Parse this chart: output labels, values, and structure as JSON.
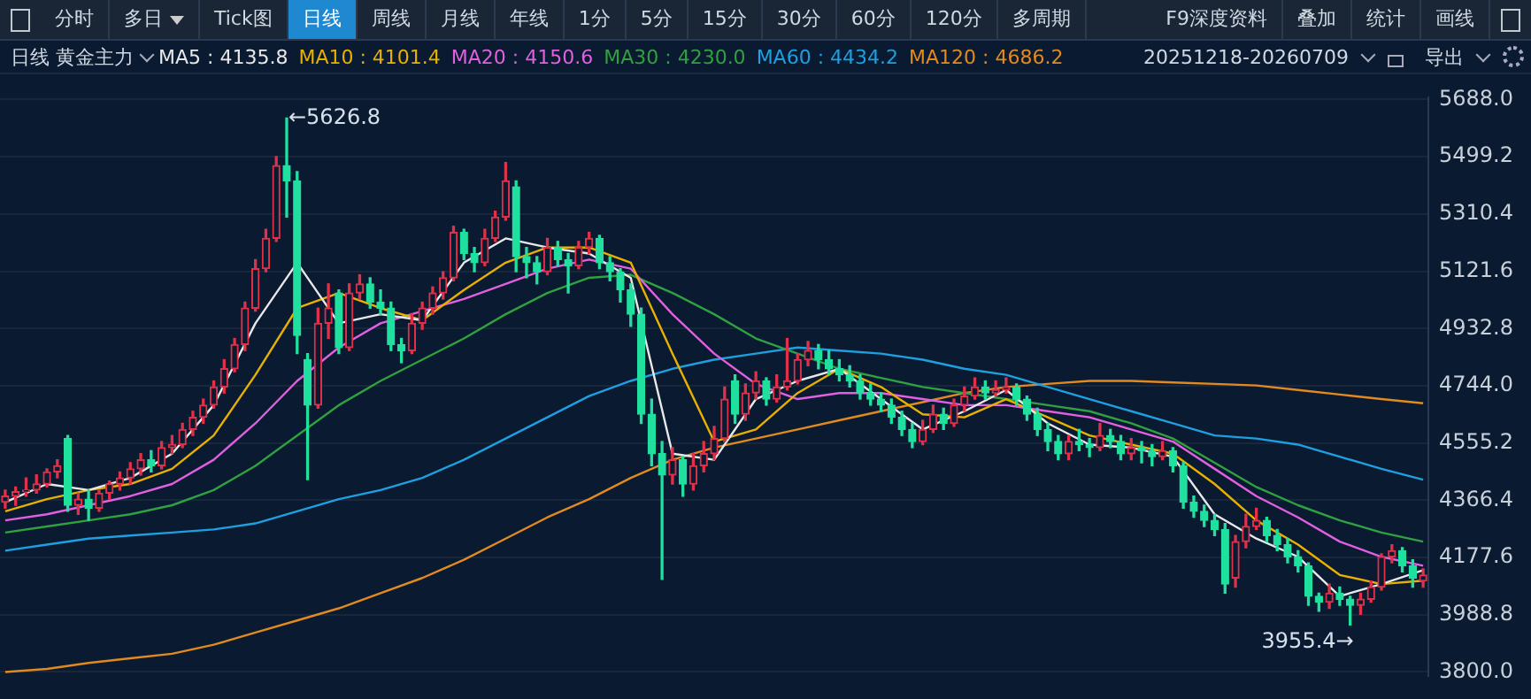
{
  "chart_data": {
    "type": "candlestick",
    "title": "日线 黄金主力",
    "subtitle": "20251218-20260709",
    "annotations": [
      "分时",
      "多日",
      "Tick图",
      "日线",
      "周线",
      "月线",
      "年线",
      "1分",
      "5分",
      "15分",
      "30分",
      "60分",
      "120分",
      "多周期",
      "F9深度资料",
      "叠加",
      "统计",
      "画线",
      "导出",
      "←5626.8",
      "3955.4→"
    ],
    "categories": [
      null,
      null,
      null,
      null,
      null,
      null,
      null,
      null,
      null,
      null,
      null,
      null,
      null,
      null,
      null,
      null,
      null,
      null,
      null,
      null,
      null,
      null,
      null,
      null,
      null,
      null,
      null,
      null,
      null,
      null,
      null,
      null,
      null,
      null,
      null,
      null,
      null,
      null,
      null,
      null,
      null,
      null,
      null,
      null,
      null,
      null,
      null,
      null,
      null,
      null,
      null,
      null,
      null,
      null,
      null,
      null,
      null,
      null,
      null,
      null,
      null,
      null,
      null,
      null,
      null,
      null,
      null,
      null,
      null,
      null,
      null,
      null,
      null,
      null,
      null,
      null,
      null,
      null,
      null,
      null,
      null,
      null,
      null,
      null,
      null,
      null,
      null,
      null,
      null,
      null,
      null,
      null,
      null,
      null,
      null,
      null,
      null,
      null,
      null,
      null,
      null,
      null,
      null,
      null,
      null,
      null,
      null,
      null,
      null,
      null,
      null,
      null,
      null,
      null,
      null,
      null,
      null,
      null,
      null,
      null,
      null,
      null,
      null,
      null,
      null,
      null,
      null,
      null,
      null,
      null,
      null,
      null,
      null,
      null,
      null,
      null,
      null
    ],
    "ohlc": [
      [
        4360,
        4400,
        4340,
        4380
      ],
      [
        4380,
        4410,
        4350,
        4395
      ],
      [
        4395,
        4440,
        4380,
        4400
      ],
      [
        4400,
        4450,
        4390,
        4420
      ],
      [
        4420,
        4470,
        4410,
        4460
      ],
      [
        4460,
        4500,
        4440,
        4480
      ],
      [
        4570,
        4580,
        4330,
        4350
      ],
      [
        4350,
        4390,
        4320,
        4370
      ],
      [
        4370,
        4400,
        4300,
        4340
      ],
      [
        4340,
        4400,
        4330,
        4390
      ],
      [
        4390,
        4430,
        4370,
        4420
      ],
      [
        4420,
        4460,
        4400,
        4440
      ],
      [
        4440,
        4490,
        4420,
        4470
      ],
      [
        4470,
        4520,
        4450,
        4500
      ],
      [
        4500,
        4530,
        4460,
        4480
      ],
      [
        4480,
        4560,
        4470,
        4540
      ],
      [
        4540,
        4580,
        4520,
        4550
      ],
      [
        4550,
        4620,
        4540,
        4600
      ],
      [
        4600,
        4660,
        4580,
        4640
      ],
      [
        4640,
        4700,
        4620,
        4680
      ],
      [
        4680,
        4760,
        4670,
        4740
      ],
      [
        4740,
        4830,
        4720,
        4800
      ],
      [
        4800,
        4900,
        4790,
        4880
      ],
      [
        4880,
        5020,
        4860,
        5000
      ],
      [
        5000,
        5160,
        4990,
        5130
      ],
      [
        5130,
        5260,
        5120,
        5230
      ],
      [
        5230,
        5500,
        5220,
        5470
      ],
      [
        5470,
        5626.8,
        5300,
        5420
      ],
      [
        5420,
        5450,
        4850,
        4910
      ],
      [
        4830,
        4850,
        4434,
        4680
      ],
      [
        4680,
        5000,
        4670,
        4950
      ],
      [
        4950,
        5080,
        4900,
        5000
      ],
      [
        5050,
        5060,
        4850,
        4870
      ],
      [
        4870,
        5080,
        4860,
        5050
      ],
      [
        5050,
        5110,
        5030,
        5080
      ],
      [
        5080,
        5100,
        5000,
        5020
      ],
      [
        5020,
        5060,
        4980,
        5000
      ],
      [
        5000,
        5020,
        4860,
        4880
      ],
      [
        4880,
        4900,
        4820,
        4860
      ],
      [
        4860,
        4980,
        4850,
        4950
      ],
      [
        4950,
        5020,
        4930,
        5000
      ],
      [
        5000,
        5070,
        4980,
        5050
      ],
      [
        5050,
        5120,
        5030,
        5100
      ],
      [
        5100,
        5270,
        5090,
        5250
      ],
      [
        5250,
        5260,
        5160,
        5180
      ],
      [
        5180,
        5200,
        5120,
        5150
      ],
      [
        5150,
        5260,
        5140,
        5230
      ],
      [
        5230,
        5320,
        5220,
        5300
      ],
      [
        5300,
        5480,
        5290,
        5420
      ],
      [
        5400,
        5420,
        5120,
        5170
      ],
      [
        5170,
        5200,
        5100,
        5150
      ],
      [
        5150,
        5170,
        5080,
        5120
      ],
      [
        5120,
        5230,
        5110,
        5200
      ],
      [
        5200,
        5220,
        5140,
        5160
      ],
      [
        5160,
        5180,
        5050,
        5140
      ],
      [
        5140,
        5220,
        5130,
        5200
      ],
      [
        5200,
        5250,
        5180,
        5230
      ],
      [
        5230,
        5240,
        5130,
        5150
      ],
      [
        5150,
        5170,
        5090,
        5120
      ],
      [
        5120,
        5130,
        5020,
        5060
      ],
      [
        5060,
        5080,
        4940,
        4980
      ],
      [
        4980,
        5000,
        4620,
        4650
      ],
      [
        4650,
        4700,
        4480,
        4520
      ],
      [
        4520,
        4560,
        4105,
        4450
      ],
      [
        4450,
        4540,
        4420,
        4500
      ],
      [
        4500,
        4510,
        4380,
        4420
      ],
      [
        4420,
        4520,
        4400,
        4480
      ],
      [
        4480,
        4560,
        4460,
        4520
      ],
      [
        4520,
        4610,
        4500,
        4570
      ],
      [
        4570,
        4740,
        4560,
        4700
      ],
      [
        4760,
        4780,
        4620,
        4650
      ],
      [
        4650,
        4750,
        4630,
        4720
      ],
      [
        4720,
        4790,
        4700,
        4760
      ],
      [
        4760,
        4770,
        4680,
        4700
      ],
      [
        4700,
        4780,
        4690,
        4740
      ],
      [
        4740,
        4900,
        4730,
        4760
      ],
      [
        4760,
        4850,
        4750,
        4830
      ],
      [
        4830,
        4890,
        4810,
        4860
      ],
      [
        4860,
        4880,
        4800,
        4830
      ],
      [
        4830,
        4860,
        4780,
        4800
      ],
      [
        4800,
        4830,
        4760,
        4780
      ],
      [
        4780,
        4810,
        4740,
        4760
      ],
      [
        4760,
        4780,
        4700,
        4720
      ],
      [
        4720,
        4750,
        4680,
        4700
      ],
      [
        4700,
        4720,
        4660,
        4680
      ],
      [
        4680,
        4700,
        4620,
        4640
      ],
      [
        4640,
        4660,
        4580,
        4600
      ],
      [
        4600,
        4620,
        4540,
        4560
      ],
      [
        4560,
        4630,
        4550,
        4600
      ],
      [
        4600,
        4680,
        4590,
        4650
      ],
      [
        4650,
        4670,
        4600,
        4620
      ],
      [
        4620,
        4700,
        4610,
        4680
      ],
      [
        4680,
        4740,
        4660,
        4710
      ],
      [
        4710,
        4770,
        4700,
        4740
      ],
      [
        4740,
        4760,
        4700,
        4720
      ],
      [
        4720,
        4760,
        4710,
        4730
      ],
      [
        4730,
        4770,
        4720,
        4740
      ],
      [
        4740,
        4750,
        4680,
        4700
      ],
      [
        4700,
        4710,
        4630,
        4650
      ],
      [
        4650,
        4670,
        4580,
        4600
      ],
      [
        4600,
        4620,
        4530,
        4560
      ],
      [
        4560,
        4580,
        4500,
        4520
      ],
      [
        4520,
        4580,
        4500,
        4560
      ],
      [
        4560,
        4600,
        4530,
        4550
      ],
      [
        4550,
        4570,
        4510,
        4540
      ],
      [
        4540,
        4620,
        4530,
        4580
      ],
      [
        4580,
        4600,
        4540,
        4560
      ],
      [
        4560,
        4580,
        4500,
        4520
      ],
      [
        4520,
        4570,
        4500,
        4540
      ],
      [
        4540,
        4560,
        4490,
        4530
      ],
      [
        4530,
        4550,
        4480,
        4510
      ],
      [
        4510,
        4560,
        4500,
        4530
      ],
      [
        4530,
        4540,
        4460,
        4480
      ],
      [
        4480,
        4490,
        4340,
        4360
      ],
      [
        4360,
        4380,
        4310,
        4330
      ],
      [
        4330,
        4350,
        4280,
        4300
      ],
      [
        4300,
        4320,
        4250,
        4270
      ],
      [
        4270,
        4290,
        4060,
        4090
      ],
      [
        4110,
        4250,
        4080,
        4230
      ],
      [
        4230,
        4320,
        4210,
        4280
      ],
      [
        4280,
        4340,
        4270,
        4300
      ],
      [
        4300,
        4310,
        4230,
        4250
      ],
      [
        4250,
        4270,
        4200,
        4220
      ],
      [
        4220,
        4240,
        4160,
        4180
      ],
      [
        4180,
        4200,
        4130,
        4150
      ],
      [
        4150,
        4160,
        4020,
        4050
      ],
      [
        4050,
        4060,
        4000,
        4030
      ],
      [
        4030,
        4090,
        4010,
        4060
      ],
      [
        4060,
        4080,
        4020,
        4040
      ],
      [
        4040,
        4050,
        3955.4,
        4020
      ],
      [
        4020,
        4060,
        3990,
        4040
      ],
      [
        4040,
        4100,
        4030,
        4080
      ],
      [
        4080,
        4190,
        4070,
        4180
      ],
      [
        4180,
        4220,
        4160,
        4200
      ],
      [
        4200,
        4210,
        4130,
        4150
      ],
      [
        4150,
        4170,
        4080,
        4110
      ],
      [
        4100,
        4140,
        4080,
        4120
      ]
    ],
    "colors": [
      "#e0304a",
      "#e0304a",
      "#e0304a",
      "#e0304a",
      "#e0304a",
      "#e0304a",
      "#20e0a0",
      "#e0304a",
      "#20e0a0",
      "#e0304a",
      "#e0304a",
      "#e0304a",
      "#e0304a",
      "#e0304a",
      "#20e0a0",
      "#e0304a",
      "#e0304a",
      "#e0304a",
      "#e0304a",
      "#e0304a",
      "#e0304a",
      "#e0304a",
      "#e0304a",
      "#e0304a",
      "#e0304a",
      "#e0304a",
      "#e0304a",
      "#20e0a0",
      "#20e0a0",
      "#20e0a0",
      "#e0304a",
      "#e0304a",
      "#20e0a0",
      "#e0304a",
      "#e0304a",
      "#20e0a0",
      "#20e0a0",
      "#20e0a0",
      "#20e0a0",
      "#e0304a",
      "#e0304a",
      "#e0304a",
      "#e0304a",
      "#e0304a",
      "#20e0a0",
      "#20e0a0",
      "#e0304a",
      "#e0304a",
      "#e0304a",
      "#20e0a0",
      "#20e0a0",
      "#20e0a0",
      "#e0304a",
      "#20e0a0",
      "#20e0a0",
      "#e0304a",
      "#e0304a",
      "#20e0a0",
      "#20e0a0",
      "#20e0a0",
      "#20e0a0",
      "#20e0a0",
      "#20e0a0",
      "#20e0a0",
      "#e0304a",
      "#20e0a0",
      "#e0304a",
      "#e0304a",
      "#e0304a",
      "#e0304a",
      "#20e0a0",
      "#e0304a",
      "#e0304a",
      "#20e0a0",
      "#e0304a",
      "#e0304a",
      "#e0304a",
      "#e0304a",
      "#20e0a0",
      "#20e0a0",
      "#20e0a0",
      "#20e0a0",
      "#20e0a0",
      "#20e0a0",
      "#20e0a0",
      "#20e0a0",
      "#20e0a0",
      "#20e0a0",
      "#e0304a",
      "#e0304a",
      "#20e0a0",
      "#e0304a",
      "#e0304a",
      "#e0304a",
      "#20e0a0",
      "#e0304a",
      "#e0304a",
      "#20e0a0",
      "#20e0a0",
      "#20e0a0",
      "#20e0a0",
      "#20e0a0",
      "#e0304a",
      "#20e0a0",
      "#20e0a0",
      "#e0304a",
      "#20e0a0",
      "#20e0a0",
      "#e0304a",
      "#20e0a0",
      "#20e0a0",
      "#e0304a",
      "#20e0a0",
      "#20e0a0",
      "#20e0a0",
      "#20e0a0",
      "#20e0a0",
      "#20e0a0",
      "#e0304a",
      "#e0304a",
      "#e0304a",
      "#20e0a0",
      "#20e0a0",
      "#20e0a0",
      "#20e0a0",
      "#20e0a0",
      "#20e0a0",
      "#e0304a",
      "#20e0a0",
      "#20e0a0",
      "#e0304a",
      "#e0304a",
      "#e0304a",
      "#e0304a",
      "#20e0a0",
      "#20e0a0",
      "#e0304a"
    ],
    "series": [
      {
        "type": "line",
        "name": "MA5 : 4135.8",
        "color": "#e8e8e8",
        "values": [
          4360,
          null,
          null,
          null,
          4420,
          null,
          null,
          null,
          4400,
          null,
          null,
          null,
          4440,
          null,
          null,
          null,
          4520,
          null,
          null,
          null,
          4680,
          null,
          null,
          null,
          4950,
          null,
          null,
          null,
          5150,
          null,
          null,
          null,
          4950,
          null,
          null,
          null,
          4980,
          null,
          null,
          null,
          4960,
          null,
          null,
          null,
          5150,
          null,
          null,
          null,
          5230,
          null,
          null,
          null,
          5200,
          null,
          null,
          null,
          5180,
          null,
          null,
          null,
          5100,
          null,
          null,
          null,
          4520,
          null,
          null,
          null,
          4500,
          null,
          null,
          null,
          4700,
          null,
          null,
          null,
          4760,
          null,
          null,
          null,
          4800,
          null,
          null,
          null,
          4700,
          null,
          null,
          null,
          4600,
          null,
          null,
          null,
          4660,
          null,
          null,
          null,
          4730,
          null,
          null,
          null,
          4620,
          null,
          null,
          null,
          4550,
          null,
          null,
          null,
          4540,
          null,
          null,
          null,
          4510,
          null,
          null,
          null,
          4320,
          null,
          null,
          null,
          4240,
          null,
          null,
          null,
          4180,
          null,
          null,
          null,
          4050,
          null,
          null,
          null,
          4090,
          null,
          null,
          null,
          4135.8
        ]
      },
      {
        "type": "line",
        "name": "MA10 : 4101.4",
        "color": "#e8b000",
        "values": [
          4330,
          null,
          null,
          null,
          4370,
          null,
          null,
          null,
          4400,
          null,
          null,
          null,
          4420,
          null,
          null,
          null,
          4470,
          null,
          null,
          null,
          4580,
          null,
          null,
          null,
          4780,
          null,
          null,
          null,
          5000,
          null,
          null,
          null,
          5050,
          null,
          null,
          null,
          5000,
          null,
          null,
          null,
          4960,
          null,
          null,
          null,
          5060,
          null,
          null,
          null,
          5150,
          null,
          null,
          null,
          5200,
          null,
          null,
          null,
          5200,
          null,
          null,
          null,
          5150,
          null,
          null,
          null,
          4850,
          null,
          null,
          null,
          4560,
          null,
          null,
          null,
          4600,
          null,
          null,
          null,
          4720,
          null,
          null,
          null,
          4800,
          null,
          null,
          null,
          4740,
          null,
          null,
          null,
          4650,
          null,
          null,
          null,
          4640,
          null,
          null,
          null,
          4700,
          null,
          null,
          null,
          4640,
          null,
          null,
          null,
          4580,
          null,
          null,
          null,
          4550,
          null,
          null,
          null,
          4520,
          null,
          null,
          null,
          4420,
          null,
          null,
          null,
          4300,
          null,
          null,
          null,
          4220,
          null,
          null,
          null,
          4120,
          null,
          null,
          null,
          4090,
          null,
          null,
          null,
          4101.4
        ]
      },
      {
        "type": "line",
        "name": "MA20 : 4150.6",
        "color": "#e060e0",
        "values": [
          4300,
          null,
          null,
          null,
          4320,
          null,
          null,
          null,
          4350,
          null,
          null,
          null,
          4380,
          null,
          null,
          null,
          4420,
          null,
          null,
          null,
          4500,
          null,
          null,
          null,
          4620,
          null,
          null,
          null,
          4760,
          null,
          null,
          null,
          4870,
          null,
          null,
          null,
          4950,
          null,
          null,
          null,
          4990,
          null,
          null,
          null,
          5030,
          null,
          null,
          null,
          5080,
          null,
          null,
          null,
          5130,
          null,
          null,
          null,
          5160,
          null,
          null,
          null,
          5130,
          null,
          null,
          null,
          4980,
          null,
          null,
          null,
          4850,
          null,
          null,
          null,
          4750,
          null,
          null,
          null,
          4700,
          null,
          null,
          null,
          4720,
          null,
          null,
          null,
          4720,
          null,
          null,
          null,
          4700,
          null,
          null,
          null,
          4680,
          null,
          null,
          null,
          4680,
          null,
          null,
          null,
          4660,
          null,
          null,
          null,
          4640,
          null,
          null,
          null,
          4600,
          null,
          null,
          null,
          4560,
          null,
          null,
          null,
          4470,
          null,
          null,
          null,
          4380,
          null,
          null,
          null,
          4310,
          null,
          null,
          null,
          4230,
          null,
          null,
          null,
          4180,
          null,
          null,
          null,
          4150.6
        ]
      },
      {
        "type": "line",
        "name": "MA30 : 4230.0",
        "color": "#30a040",
        "values": [
          4260,
          null,
          null,
          null,
          4280,
          null,
          null,
          null,
          4300,
          null,
          null,
          null,
          4320,
          null,
          null,
          null,
          4350,
          null,
          null,
          null,
          4400,
          null,
          null,
          null,
          4480,
          null,
          null,
          null,
          4580,
          null,
          null,
          null,
          4680,
          null,
          null,
          null,
          4760,
          null,
          null,
          null,
          4830,
          null,
          null,
          null,
          4900,
          null,
          null,
          null,
          4980,
          null,
          null,
          null,
          5050,
          null,
          null,
          null,
          5100,
          null,
          null,
          null,
          5110,
          null,
          null,
          null,
          5050,
          null,
          null,
          null,
          4980,
          null,
          null,
          null,
          4900,
          null,
          null,
          null,
          4850,
          null,
          null,
          null,
          4800,
          null,
          null,
          null,
          4770,
          null,
          null,
          null,
          4740,
          null,
          null,
          null,
          4720,
          null,
          null,
          null,
          4700,
          null,
          null,
          null,
          4680,
          null,
          null,
          null,
          4660,
          null,
          null,
          null,
          4620,
          null,
          null,
          null,
          4570,
          null,
          null,
          null,
          4490,
          null,
          null,
          null,
          4410,
          null,
          null,
          null,
          4350,
          null,
          null,
          null,
          4300,
          null,
          null,
          null,
          4260,
          null,
          null,
          null,
          4230
        ]
      },
      {
        "type": "line",
        "name": "MA60 : 4434.2",
        "color": "#1ea0e0",
        "values": [
          4200,
          null,
          null,
          null,
          4220,
          null,
          null,
          null,
          4240,
          null,
          null,
          null,
          4250,
          null,
          null,
          null,
          4260,
          null,
          null,
          null,
          4270,
          null,
          null,
          null,
          4290,
          null,
          null,
          null,
          4330,
          null,
          null,
          null,
          4370,
          null,
          null,
          null,
          4400,
          null,
          null,
          null,
          4440,
          null,
          null,
          null,
          4500,
          null,
          null,
          null,
          4570,
          null,
          null,
          null,
          4640,
          null,
          null,
          null,
          4710,
          null,
          null,
          null,
          4760,
          null,
          null,
          null,
          4800,
          null,
          null,
          null,
          4830,
          null,
          null,
          null,
          4850,
          null,
          null,
          null,
          4870,
          null,
          null,
          null,
          4860,
          null,
          null,
          null,
          4850,
          null,
          null,
          null,
          4830,
          null,
          null,
          null,
          4800,
          null,
          null,
          null,
          4780,
          null,
          null,
          null,
          4740,
          null,
          null,
          null,
          4700,
          null,
          null,
          null,
          4660,
          null,
          null,
          null,
          4620,
          null,
          null,
          null,
          4580,
          null,
          null,
          null,
          4570,
          null,
          null,
          null,
          4550,
          null,
          null,
          null,
          4510,
          null,
          null,
          null,
          4470,
          null,
          null,
          null,
          4434.2
        ]
      },
      {
        "type": "line",
        "name": "MA120 : 4686.2",
        "color": "#e08a20",
        "values": [
          3800,
          null,
          null,
          null,
          3810,
          null,
          null,
          null,
          3830,
          null,
          null,
          null,
          3845,
          null,
          null,
          null,
          3860,
          null,
          null,
          null,
          3890,
          null,
          null,
          null,
          3930,
          null,
          null,
          null,
          3970,
          null,
          null,
          null,
          4010,
          null,
          null,
          null,
          4060,
          null,
          null,
          null,
          4110,
          null,
          null,
          null,
          4170,
          null,
          null,
          null,
          4240,
          null,
          null,
          null,
          4310,
          null,
          null,
          null,
          4370,
          null,
          null,
          null,
          4440,
          null,
          null,
          null,
          4500,
          null,
          null,
          null,
          4540,
          null,
          null,
          null,
          4570,
          null,
          null,
          null,
          4600,
          null,
          null,
          null,
          4630,
          null,
          null,
          null,
          4660,
          null,
          null,
          null,
          4690,
          null,
          null,
          null,
          4720,
          null,
          null,
          null,
          4740,
          null,
          null,
          null,
          4750,
          null,
          null,
          null,
          4760,
          null,
          null,
          null,
          4760,
          null,
          null,
          null,
          4755,
          null,
          null,
          null,
          4750,
          null,
          null,
          null,
          4745,
          null,
          null,
          null,
          4730,
          null,
          null,
          null,
          4715,
          null,
          null,
          null,
          4700,
          null,
          null,
          null,
          4686.2
        ]
      }
    ],
    "ylim": [
      3788,
      5694
    ],
    "yticks": [
      {
        "value": 5688,
        "label": "5688.0"
      },
      {
        "value": 5499.2,
        "label": "5499.2"
      },
      {
        "value": 5310.4,
        "label": "5310.4"
      },
      {
        "value": 5121.6,
        "label": "5121.6"
      },
      {
        "value": 4932.8,
        "label": "4932.8"
      },
      {
        "value": 4744,
        "label": "4744.0"
      },
      {
        "value": 4555.2,
        "label": "4555.2"
      },
      {
        "value": 4366.4,
        "label": "4366.4"
      },
      {
        "value": 4177.6,
        "label": "4177.6"
      },
      {
        "value": 3988.8,
        "label": "3988.8"
      },
      {
        "value": 3800,
        "label": "3800.0"
      }
    ],
    "grid": "y",
    "legend": "top left",
    "marker": "none",
    "tick_labels": "y"
  }
}
